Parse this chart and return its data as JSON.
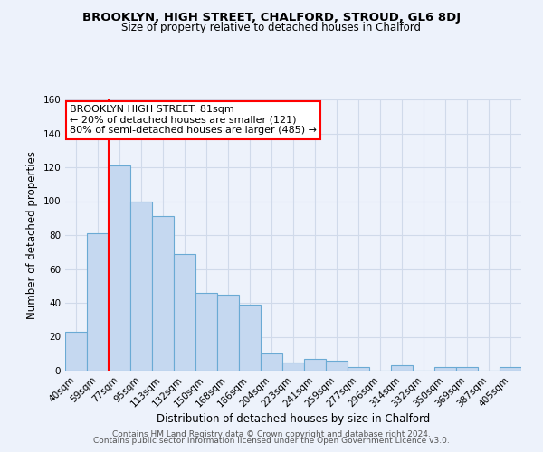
{
  "title": "BROOKLYN, HIGH STREET, CHALFORD, STROUD, GL6 8DJ",
  "subtitle": "Size of property relative to detached houses in Chalford",
  "xlabel": "Distribution of detached houses by size in Chalford",
  "ylabel": "Number of detached properties",
  "bar_labels": [
    "40sqm",
    "59sqm",
    "77sqm",
    "95sqm",
    "113sqm",
    "132sqm",
    "150sqm",
    "168sqm",
    "186sqm",
    "204sqm",
    "223sqm",
    "241sqm",
    "259sqm",
    "277sqm",
    "296sqm",
    "314sqm",
    "332sqm",
    "350sqm",
    "369sqm",
    "387sqm",
    "405sqm"
  ],
  "bar_values": [
    23,
    81,
    121,
    100,
    91,
    69,
    46,
    45,
    39,
    10,
    5,
    7,
    6,
    2,
    0,
    3,
    0,
    2,
    2,
    0,
    2
  ],
  "bar_color": "#c5d8f0",
  "bar_edge_color": "#6aaad4",
  "vline_x_index": 2,
  "vline_color": "red",
  "annotation_text": "BROOKLYN HIGH STREET: 81sqm\n← 20% of detached houses are smaller (121)\n80% of semi-detached houses are larger (485) →",
  "annotation_box_color": "white",
  "annotation_box_edge_color": "red",
  "ylim": [
    0,
    160
  ],
  "yticks": [
    0,
    20,
    40,
    60,
    80,
    100,
    120,
    140,
    160
  ],
  "footer_line1": "Contains HM Land Registry data © Crown copyright and database right 2024.",
  "footer_line2": "Contains public sector information licensed under the Open Government Licence v3.0.",
  "bg_color": "#edf2fb",
  "grid_color": "#d0daea"
}
